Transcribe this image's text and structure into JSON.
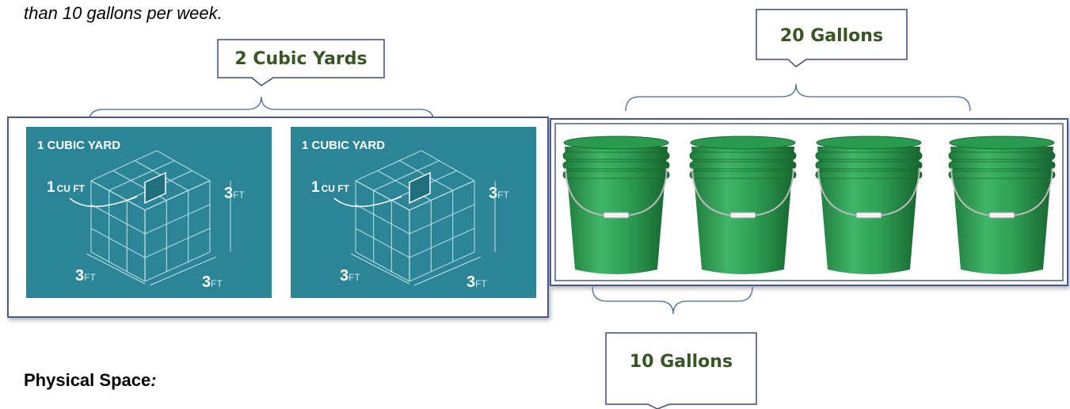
{
  "intro_text": "than 10 gallons per week.",
  "callouts": {
    "cubic_yards": "2 Cubic Yards",
    "twenty_gallons": "20 Gallons",
    "ten_gallons": "10 Gallons"
  },
  "cube_panels": [
    {
      "title": "1 CUBIC YARD",
      "unit_number": "1",
      "unit_label": "CU FT",
      "dims": [
        {
          "number": "3",
          "unit": "FT"
        },
        {
          "number": "3",
          "unit": "FT"
        },
        {
          "number": "3",
          "unit": "FT"
        }
      ]
    },
    {
      "title": "1 CUBIC YARD",
      "unit_number": "1",
      "unit_label": "CU FT",
      "dims": [
        {
          "number": "3",
          "unit": "FT"
        },
        {
          "number": "3",
          "unit": "FT"
        },
        {
          "number": "3",
          "unit": "FT"
        }
      ]
    }
  ],
  "heading": {
    "text": "Physical Space",
    "suffix": ":"
  }
}
